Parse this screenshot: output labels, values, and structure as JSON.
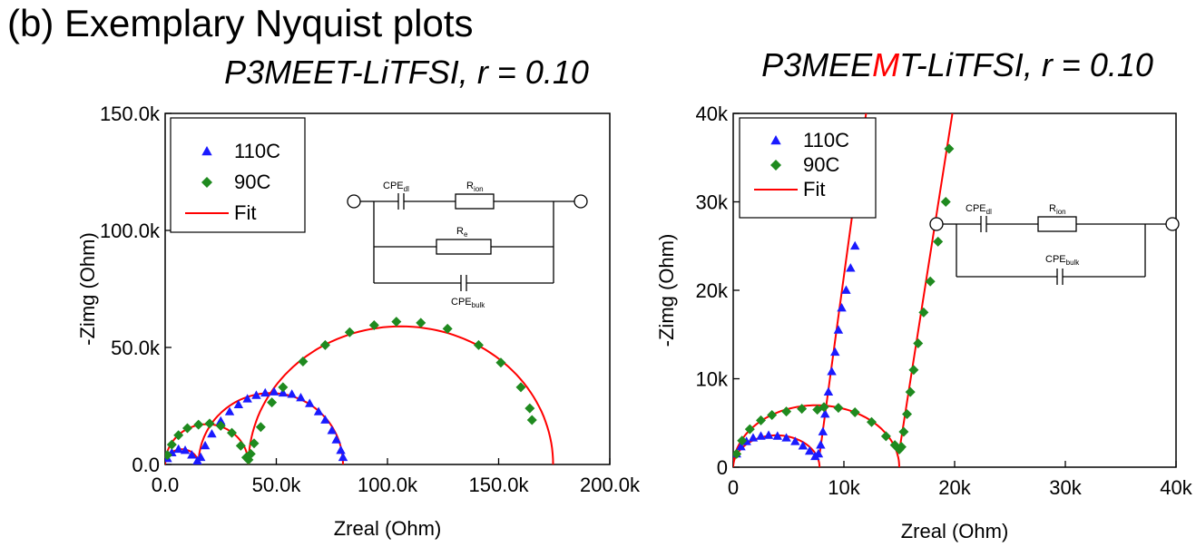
{
  "figure_title": "(b) Exemplary Nyquist plots",
  "chart_data": [
    {
      "type": "scatter",
      "title": "P3MEET-LiTFSI,  r = 0.10",
      "title_parts": [
        {
          "text": "P3MEET-LiTFSI,  r = 0.10",
          "color": "#000000"
        }
      ],
      "xlabel": "Zreal (Ohm)",
      "ylabel": "-Zimg (Ohm)",
      "xlim": [
        0,
        200000
      ],
      "ylim": [
        0,
        150000
      ],
      "xticks": [
        0,
        50000,
        100000,
        150000,
        200000
      ],
      "xtick_labels": [
        "0.0",
        "50.0k",
        "100.0k",
        "150.0k",
        "200.0k"
      ],
      "yticks": [
        0,
        50000,
        100000,
        150000
      ],
      "ytick_labels": [
        "0.0",
        "50.0k",
        "100.0k",
        "150.0k"
      ],
      "grid": false,
      "legend_position": "top-left",
      "series": [
        {
          "name": "110C",
          "marker": "triangle",
          "color": "#1a1aff",
          "x": [
            1000,
            3000,
            6000,
            9000,
            12000,
            14500,
            16000,
            18000,
            21000,
            25000,
            29000,
            33000,
            37000,
            41000,
            45000,
            49000,
            53000,
            57000,
            61000,
            65000,
            69000,
            72000,
            75000,
            77000,
            79000,
            80000
          ],
          "y": [
            2500,
            5000,
            6500,
            6000,
            4000,
            1500,
            3000,
            8000,
            13000,
            18500,
            22500,
            25500,
            28000,
            29500,
            30500,
            31000,
            30500,
            30000,
            28500,
            26000,
            22500,
            19000,
            14500,
            10500,
            6000,
            3000
          ]
        },
        {
          "name": "90C",
          "marker": "diamond",
          "color": "#1f8a1f",
          "x": [
            1000,
            3000,
            6000,
            10000,
            15000,
            20000,
            25000,
            30000,
            34000,
            36500,
            37500,
            38500,
            40000,
            43000,
            48000,
            53000,
            62000,
            72000,
            83000,
            94000,
            104000,
            115000,
            127000,
            141000,
            151000,
            160000,
            164000,
            165000
          ],
          "y": [
            4000,
            8500,
            12500,
            15500,
            17000,
            17500,
            16500,
            13500,
            8000,
            3000,
            2000,
            4500,
            9000,
            16000,
            26500,
            33000,
            44000,
            51000,
            56500,
            59500,
            61000,
            60500,
            58000,
            51000,
            43500,
            33000,
            24000,
            19000
          ]
        }
      ],
      "fits": [
        {
          "name": "Fit",
          "color": "#ff0000",
          "type": "arc",
          "x": [
            0,
            15000
          ],
          "center": [
            7500,
            0
          ],
          "radius": [
            7500,
            6500
          ]
        },
        {
          "name": "Fit",
          "color": "#ff0000",
          "type": "arc",
          "x": [
            15000,
            80000
          ],
          "center": [
            47500,
            0
          ],
          "radius": [
            32500,
            30500
          ]
        },
        {
          "name": "Fit",
          "color": "#ff0000",
          "type": "arc",
          "x": [
            0,
            37500
          ],
          "center": [
            18750,
            0
          ],
          "radius": [
            18750,
            17200
          ]
        },
        {
          "name": "Fit",
          "color": "#ff0000",
          "type": "arc",
          "x": [
            37500,
            165000
          ],
          "center": [
            106000,
            0
          ],
          "radius": [
            68500,
            59000
          ]
        }
      ],
      "legend": [
        {
          "label": "110C",
          "marker": "triangle",
          "color": "#1a1aff"
        },
        {
          "label": "90C",
          "marker": "diamond",
          "color": "#1f8a1f"
        },
        {
          "label": "Fit",
          "marker": "line",
          "color": "#ff0000"
        }
      ],
      "circuit": {
        "labels": [
          "CPE",
          "dl",
          "R",
          "ion",
          "R",
          "e",
          "CPE",
          "bulk"
        ]
      }
    },
    {
      "type": "scatter",
      "title": "P3MEEMT-LiTFSI,  r = 0.10",
      "title_parts": [
        {
          "text": "P3MEE",
          "color": "#000000"
        },
        {
          "text": "M",
          "color": "#ff0000"
        },
        {
          "text": "T-LiTFSI,  r = 0.10",
          "color": "#000000"
        }
      ],
      "xlabel": "Zreal (Ohm)",
      "ylabel": "-Zimg (Ohm)",
      "xlim": [
        0,
        40000
      ],
      "ylim": [
        0,
        40000
      ],
      "xticks": [
        0,
        10000,
        20000,
        30000,
        40000
      ],
      "xtick_labels": [
        "0",
        "10k",
        "20k",
        "30k",
        "40k"
      ],
      "yticks": [
        0,
        10000,
        20000,
        30000,
        40000
      ],
      "ytick_labels": [
        "0",
        "10k",
        "20k",
        "30k",
        "40k"
      ],
      "grid": false,
      "legend_position": "top-left",
      "series": [
        {
          "name": "110C",
          "marker": "triangle",
          "color": "#1a1aff",
          "x": [
            300,
            700,
            1200,
            1800,
            2500,
            3200,
            4000,
            4800,
            5600,
            6300,
            6900,
            7400,
            7700,
            7900,
            8100,
            8300,
            8600,
            8900,
            9200,
            9500,
            9800,
            10200,
            10600,
            11000
          ],
          "y": [
            1500,
            2300,
            2900,
            3300,
            3500,
            3600,
            3500,
            3300,
            2900,
            2400,
            1800,
            1200,
            1500,
            2500,
            4000,
            6000,
            8500,
            10800,
            13000,
            15500,
            18000,
            20000,
            22500,
            25000
          ]
        },
        {
          "name": "90C",
          "marker": "diamond",
          "color": "#1f8a1f",
          "x": [
            300,
            800,
            1500,
            2500,
            3500,
            4800,
            6200,
            7600,
            8200,
            9500,
            11000,
            12500,
            13800,
            14600,
            15000,
            15200,
            15400,
            15700,
            16000,
            16300,
            16700,
            17200,
            17800,
            18500,
            19200,
            19500
          ],
          "y": [
            1500,
            3000,
            4300,
            5300,
            5900,
            6300,
            6600,
            6500,
            6800,
            6700,
            6200,
            5100,
            3500,
            2500,
            2000,
            2300,
            4000,
            6000,
            8500,
            11000,
            14000,
            17500,
            21000,
            25500,
            30000,
            36000
          ]
        }
      ],
      "fits": [
        {
          "name": "Fit",
          "color": "#ff0000",
          "type": "arc",
          "x": [
            0,
            7800
          ],
          "center": [
            3900,
            0
          ],
          "radius": [
            3900,
            3600
          ]
        },
        {
          "name": "Fit",
          "color": "#ff0000",
          "type": "line",
          "x": [
            7800,
            12000
          ],
          "y": [
            1400,
            40000
          ]
        },
        {
          "name": "Fit",
          "color": "#ff0000",
          "type": "arc",
          "x": [
            0,
            15000
          ],
          "center": [
            7500,
            0
          ],
          "radius": [
            7500,
            7000
          ]
        },
        {
          "name": "Fit",
          "color": "#ff0000",
          "type": "line",
          "x": [
            15000,
            19800
          ],
          "y": [
            1800,
            40000
          ]
        }
      ],
      "legend": [
        {
          "label": "110C",
          "marker": "triangle",
          "color": "#1a1aff"
        },
        {
          "label": "90C",
          "marker": "diamond",
          "color": "#1f8a1f"
        },
        {
          "label": "Fit",
          "marker": "line",
          "color": "#ff0000"
        }
      ],
      "circuit": {
        "labels": [
          "CPE",
          "dl",
          "R",
          "ion",
          "CPE",
          "bulk"
        ]
      }
    }
  ]
}
